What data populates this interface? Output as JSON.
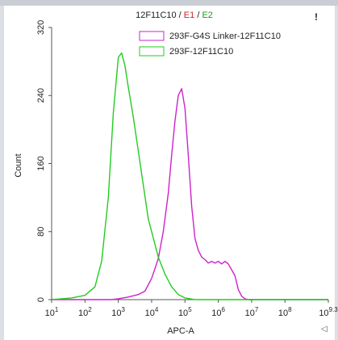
{
  "chart_data": {
    "type": "line",
    "title_parts": [
      {
        "text": "12F11C10 /",
        "color": "#222222"
      },
      {
        "text": " E1",
        "color": "#d42020"
      },
      {
        "text": " /",
        "color": "#222222"
      },
      {
        "text": " E2",
        "color": "#1a9a1a"
      }
    ],
    "xlabel": "APC-A",
    "ylabel": "Count",
    "x_scale": "log",
    "xlim": [
      1,
      9.3
    ],
    "ylim": [
      0,
      320
    ],
    "x_ticks": [
      {
        "exp": 1,
        "label_base": "10",
        "label_exp": "1"
      },
      {
        "exp": 2,
        "label_base": "10",
        "label_exp": "2"
      },
      {
        "exp": 3,
        "label_base": "10",
        "label_exp": "3"
      },
      {
        "exp": 4,
        "label_base": "10",
        "label_exp": "4"
      },
      {
        "exp": 5,
        "label_base": "10",
        "label_exp": "5"
      },
      {
        "exp": 6,
        "label_base": "10",
        "label_exp": "6"
      },
      {
        "exp": 7,
        "label_base": "10",
        "label_exp": "7"
      },
      {
        "exp": 8,
        "label_base": "10",
        "label_exp": "8"
      },
      {
        "exp": 9.3,
        "label_base": "10",
        "label_exp": "9.3"
      }
    ],
    "y_ticks": [
      0,
      80,
      160,
      240,
      320
    ],
    "grid": false,
    "legend_position": "top-right",
    "series": [
      {
        "name": "293F-G4S Linker-12F11C10",
        "color": "#cc22cc",
        "x_log10": [
          1.0,
          2.0,
          2.8,
          3.0,
          3.3,
          3.6,
          3.8,
          4.0,
          4.2,
          4.35,
          4.5,
          4.6,
          4.7,
          4.8,
          4.9,
          5.0,
          5.1,
          5.2,
          5.3,
          5.4,
          5.5,
          5.6,
          5.7,
          5.8,
          5.9,
          6.0,
          6.1,
          6.2,
          6.3,
          6.4,
          6.5,
          6.6,
          6.7,
          6.8,
          6.9,
          7.0,
          9.3
        ],
        "y": [
          0,
          0,
          0,
          1,
          3,
          6,
          10,
          25,
          48,
          80,
          125,
          170,
          210,
          240,
          248,
          225,
          170,
          110,
          72,
          58,
          50,
          47,
          43,
          45,
          43,
          45,
          42,
          45,
          42,
          35,
          28,
          12,
          4,
          1,
          0,
          0,
          0
        ]
      },
      {
        "name": "293F-12F11C10",
        "color": "#22cc22",
        "x_log10": [
          1.0,
          1.6,
          2.0,
          2.3,
          2.5,
          2.7,
          2.85,
          3.0,
          3.1,
          3.2,
          3.3,
          3.45,
          3.6,
          3.75,
          3.9,
          4.0,
          4.2,
          4.4,
          4.6,
          4.8,
          5.0,
          5.3,
          9.3
        ],
        "y": [
          0,
          2,
          5,
          15,
          45,
          120,
          220,
          285,
          290,
          275,
          250,
          215,
          175,
          135,
          95,
          80,
          50,
          30,
          15,
          6,
          2,
          0,
          0
        ]
      }
    ]
  }
}
